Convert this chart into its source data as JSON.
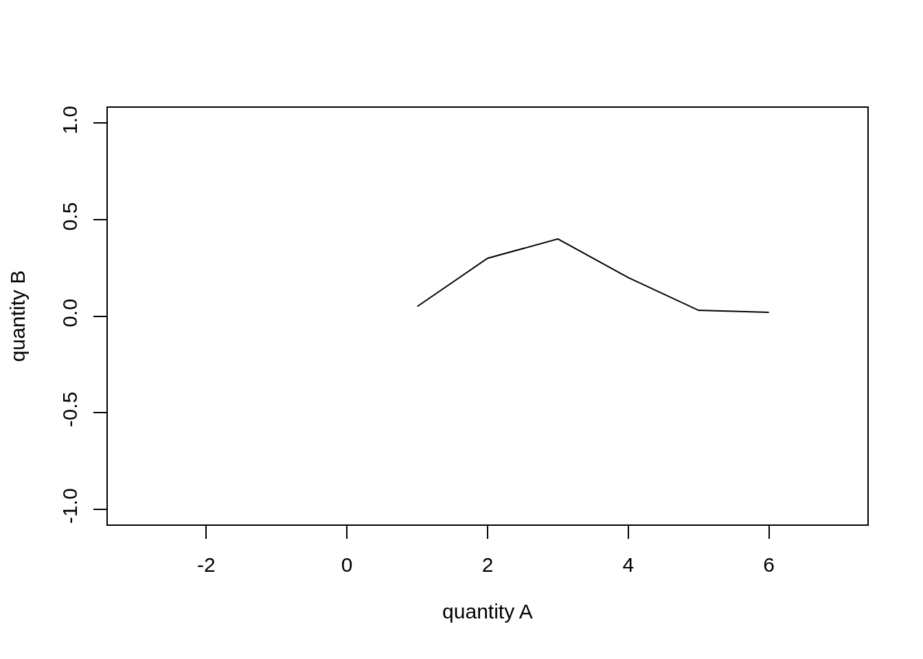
{
  "chart_data": {
    "type": "line",
    "xlabel": "quantity A",
    "ylabel": "quantity B",
    "x": [
      1,
      2,
      3,
      4,
      5,
      6
    ],
    "series": [
      {
        "color": "#000000",
        "values": [
          0.05,
          0.3,
          0.4,
          0.2,
          0.03,
          0.02
        ]
      }
    ],
    "xlim": [
      -3.4,
      7.4
    ],
    "ylim": [
      -1.08,
      1.08
    ],
    "xticks": [
      -2,
      0,
      2,
      4,
      6
    ],
    "yticks": [
      {
        "value": -1,
        "label": "-1.0"
      },
      {
        "value": -0.5,
        "label": "-0.5"
      },
      {
        "value": 0,
        "label": "0.0"
      },
      {
        "value": 0.5,
        "label": "0.5"
      },
      {
        "value": 1,
        "label": "1.0"
      }
    ],
    "grid": false,
    "line_style": "solid"
  }
}
